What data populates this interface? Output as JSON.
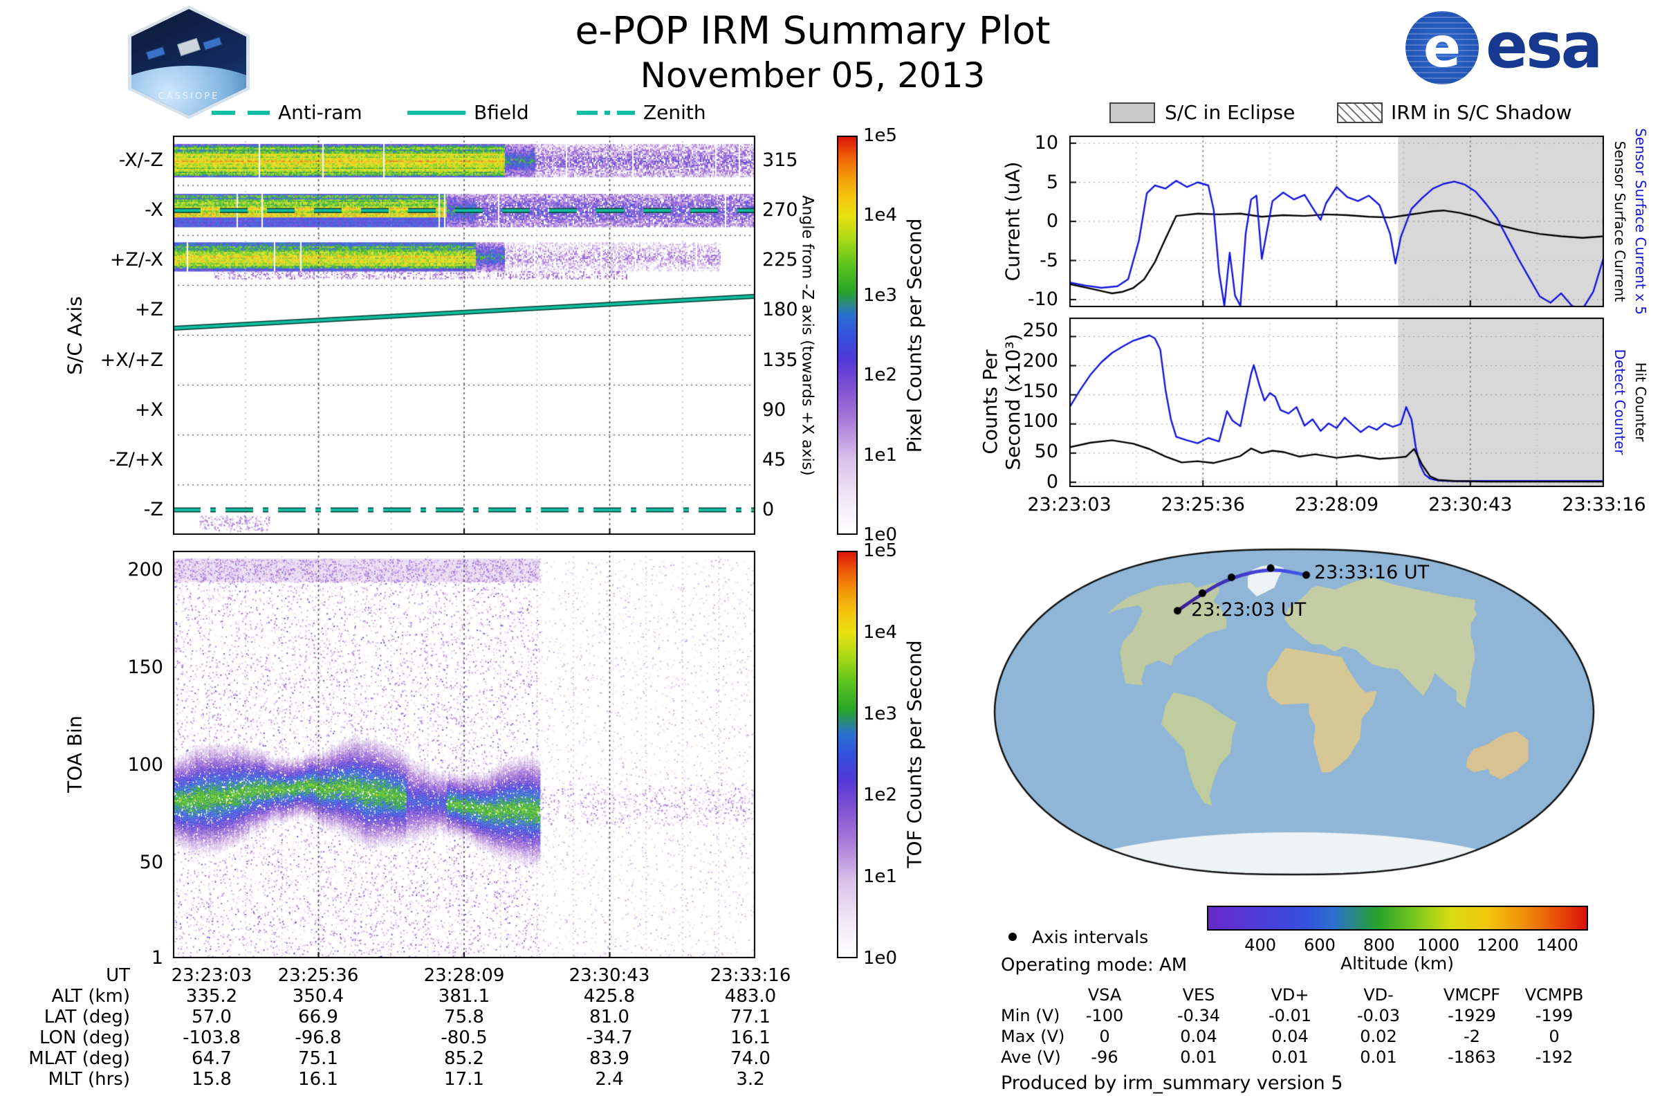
{
  "header": {
    "title": "e-POP IRM Summary Plot",
    "subtitle": "November 05, 2013",
    "esa_label": "esa",
    "mission_label": "CASSIOPE"
  },
  "attitude_legend": {
    "items": [
      {
        "label": "Anti-ram",
        "style": "dashed"
      },
      {
        "label": "Bfield",
        "style": "solid"
      },
      {
        "label": "Zenith",
        "style": "dashdot"
      }
    ],
    "line_color": "#10bfa2"
  },
  "eclipse_legend": {
    "eclipse_label": "S/C in Eclipse",
    "shadow_label": "IRM in S/C Shadow"
  },
  "ephemeris_table": {
    "row_labels": [
      "UT",
      "ALT (km)",
      "LAT (deg)",
      "LON (deg)",
      "MLAT (deg)",
      "MLT (hrs)"
    ],
    "rows": [
      [
        "23:23:03",
        "23:25:36",
        "23:28:09",
        "23:30:43",
        "23:33:16"
      ],
      [
        "335.2",
        "350.4",
        "381.1",
        "425.8",
        "483.0"
      ],
      [
        "57.0",
        "66.9",
        "75.8",
        "81.0",
        "77.1"
      ],
      [
        "-103.8",
        "-96.8",
        "-80.5",
        "-34.7",
        "16.1"
      ],
      [
        "64.7",
        "75.1",
        "85.2",
        "83.9",
        "74.0"
      ],
      [
        "15.8",
        "16.1",
        "17.1",
        "2.4",
        "3.2"
      ]
    ]
  },
  "voltage_table": {
    "columns": [
      "VSA",
      "VES",
      "VD+",
      "VD-",
      "VMCPF",
      "VCMPB"
    ],
    "row_labels": [
      "Min (V)",
      "Max (V)",
      "Ave (V)"
    ],
    "rows": [
      [
        "-100",
        "-0.34",
        "-0.01",
        "-0.03",
        "-1929",
        "-199"
      ],
      [
        "0",
        "0.04",
        "0.04",
        "0.02",
        "-2",
        "0"
      ],
      [
        "-96",
        "0.01",
        "0.01",
        "0.01",
        "-1863",
        "-192"
      ]
    ]
  },
  "footer": {
    "axis_intervals_label": "Axis intervals",
    "operating_mode": "Operating mode: AM",
    "produced_by": "Produced by irm_summary version 5"
  },
  "chart_data": [
    {
      "id": "sc_axis_spectrogram",
      "type": "heatmap",
      "ylabel": "S/C Axis",
      "yticks": [
        "-X/-Z",
        "-X",
        "+Z/-X",
        "+Z",
        "+X/+Z",
        "+X",
        "-Z/+X",
        "-Z"
      ],
      "y2label": "Angle from -Z axis (towards +X axis)",
      "y2ticks": [
        "315",
        "270",
        "225",
        "180",
        "135",
        "90",
        "45",
        "0"
      ],
      "x_start": "23:23:03",
      "x_end": "23:33:16",
      "signal_end_fraction": 0.62,
      "colorbar": {
        "label": "Pixel Counts per Second",
        "ticks": [
          "1e5",
          "1e4",
          "1e3",
          "1e2",
          "1e1",
          "1e0"
        ]
      },
      "overlays": [
        {
          "name": "Anti-ram",
          "style": "dashed",
          "band": "-X"
        },
        {
          "name": "Bfield",
          "style": "solid",
          "band": "+Z",
          "y_start_frac": 0.86,
          "y_end_frac": 0.22
        },
        {
          "name": "Zenith",
          "style": "dashdot",
          "band": "-Z"
        }
      ]
    },
    {
      "id": "tof_spectrogram",
      "type": "heatmap",
      "ylabel": "TOA Bin",
      "yticks": [
        "200",
        "150",
        "100",
        "50",
        "1"
      ],
      "bin_range": [
        1,
        210
      ],
      "main_band_center_bin": 82,
      "signal_end_fraction": 0.63,
      "colorbar": {
        "label": "TOF Counts per Second",
        "ticks": [
          "1e5",
          "1e4",
          "1e3",
          "1e2",
          "1e1",
          "1e0"
        ]
      }
    },
    {
      "id": "sensor_current",
      "type": "line",
      "ylabel": "Current (uA)",
      "ylim": [
        -10,
        10
      ],
      "yticks": [
        10,
        5,
        0,
        -5,
        -10
      ],
      "eclipse_start_fraction": 0.615,
      "right_labels": [
        {
          "text": "Sensor Surface Current",
          "color": "#000000"
        },
        {
          "text": "Sensor Surface Current x 5",
          "color": "#1414e0"
        }
      ],
      "series": [
        {
          "name": "Sensor Surface Current",
          "color": "#000000",
          "x": [
            0,
            0.02,
            0.04,
            0.06,
            0.08,
            0.1,
            0.12,
            0.14,
            0.16,
            0.18,
            0.2,
            0.24,
            0.28,
            0.32,
            0.36,
            0.4,
            0.44,
            0.48,
            0.52,
            0.56,
            0.6,
            0.63,
            0.66,
            0.68,
            0.7,
            0.73,
            0.76,
            0.8,
            0.84,
            0.88,
            0.92,
            0.96,
            1.0
          ],
          "y": [
            -8.0,
            -8.3,
            -8.6,
            -8.9,
            -9.2,
            -9.0,
            -8.5,
            -7.4,
            -5.2,
            -2.2,
            0.7,
            1.0,
            0.9,
            1.0,
            0.6,
            0.8,
            0.7,
            0.9,
            0.8,
            0.6,
            0.5,
            0.8,
            1.1,
            1.3,
            1.4,
            1.1,
            0.6,
            -0.4,
            -1.1,
            -1.6,
            -1.9,
            -2.1,
            -1.9
          ]
        },
        {
          "name": "Sensor Surface Current x 5",
          "color": "#1414e0",
          "x": [
            0,
            0.03,
            0.06,
            0.09,
            0.11,
            0.13,
            0.145,
            0.16,
            0.18,
            0.2,
            0.22,
            0.24,
            0.26,
            0.27,
            0.28,
            0.29,
            0.3,
            0.31,
            0.32,
            0.33,
            0.34,
            0.35,
            0.36,
            0.38,
            0.4,
            0.42,
            0.44,
            0.46,
            0.47,
            0.48,
            0.5,
            0.52,
            0.54,
            0.56,
            0.58,
            0.6,
            0.61,
            0.62,
            0.64,
            0.66,
            0.68,
            0.7,
            0.72,
            0.74,
            0.76,
            0.78,
            0.8,
            0.82,
            0.84,
            0.86,
            0.88,
            0.9,
            0.92,
            0.94,
            0.96,
            0.98,
            1.0
          ],
          "y": [
            -7.8,
            -8.2,
            -8.5,
            -8.3,
            -7.4,
            -2.5,
            3.6,
            4.6,
            4.2,
            5.2,
            4.4,
            5.0,
            4.6,
            1.5,
            -6.5,
            -10.8,
            -4.0,
            -9.5,
            -10.8,
            -1.5,
            2.8,
            3.3,
            -4.8,
            2.6,
            3.7,
            2.8,
            3.4,
            1.2,
            0.2,
            2.3,
            4.4,
            3.1,
            2.6,
            3.3,
            2.1,
            -1.6,
            -5.4,
            -2.0,
            1.6,
            3.0,
            4.2,
            4.8,
            5.1,
            4.7,
            3.8,
            2.2,
            0.4,
            -2.2,
            -4.8,
            -7.2,
            -9.6,
            -10.4,
            -9.2,
            -10.8,
            -11.2,
            -9.0,
            -4.5
          ]
        }
      ]
    },
    {
      "id": "counters",
      "type": "line",
      "ylabel_lines": [
        "Counts Per",
        "Second (x10³)"
      ],
      "ylim": [
        0,
        260
      ],
      "yticks": [
        250,
        200,
        150,
        100,
        50,
        0
      ],
      "eclipse_start_fraction": 0.615,
      "xticklabels": [
        "23:23:03",
        "23:25:36",
        "23:28:09",
        "23:30:43",
        "23:33:16"
      ],
      "right_labels": [
        {
          "text": "Detect Counter",
          "color": "#1414e0"
        },
        {
          "text": "Hit Counter",
          "color": "#000000"
        }
      ],
      "series": [
        {
          "name": "Detect Counter",
          "color": "#1414e0",
          "x": [
            0,
            0.02,
            0.04,
            0.06,
            0.08,
            0.1,
            0.12,
            0.14,
            0.15,
            0.16,
            0.17,
            0.18,
            0.19,
            0.2,
            0.22,
            0.24,
            0.26,
            0.28,
            0.295,
            0.305,
            0.32,
            0.33,
            0.34,
            0.345,
            0.355,
            0.365,
            0.375,
            0.385,
            0.395,
            0.41,
            0.425,
            0.44,
            0.455,
            0.47,
            0.485,
            0.5,
            0.515,
            0.53,
            0.545,
            0.56,
            0.575,
            0.59,
            0.605,
            0.62,
            0.63,
            0.64,
            0.648,
            0.656,
            0.665,
            0.675,
            0.69,
            0.71,
            0.74,
            0.78,
            0.84,
            0.92,
            1.0
          ],
          "y": [
            128,
            158,
            185,
            206,
            222,
            233,
            243,
            249,
            252,
            247,
            228,
            158,
            108,
            78,
            72,
            67,
            76,
            70,
            122,
            106,
            96,
            142,
            186,
            201,
            168,
            140,
            153,
            147,
            124,
            118,
            129,
            97,
            108,
            88,
            101,
            93,
            111,
            98,
            86,
            96,
            90,
            101,
            95,
            100,
            129,
            108,
            60,
            30,
            13,
            6,
            3,
            2,
            2,
            2,
            2,
            2,
            2
          ]
        },
        {
          "name": "Hit Counter",
          "color": "#000000",
          "x": [
            0,
            0.04,
            0.08,
            0.12,
            0.15,
            0.18,
            0.21,
            0.24,
            0.27,
            0.3,
            0.32,
            0.34,
            0.36,
            0.38,
            0.4,
            0.43,
            0.46,
            0.5,
            0.54,
            0.58,
            0.61,
            0.63,
            0.645,
            0.66,
            0.675,
            0.69,
            0.72,
            0.78,
            0.86,
            1.0
          ],
          "y": [
            60,
            68,
            72,
            66,
            57,
            44,
            34,
            36,
            33,
            40,
            45,
            58,
            50,
            54,
            52,
            44,
            48,
            42,
            46,
            40,
            42,
            44,
            57,
            30,
            10,
            4,
            2,
            1,
            1,
            1
          ]
        }
      ]
    },
    {
      "id": "ground_track_map",
      "type": "map",
      "start_label": "23:23:03 UT",
      "end_label": "23:33:16 UT",
      "track_points": [
        {
          "ut": "23:23:03",
          "lat": 57.0,
          "lon": -103.8,
          "alt_km": 335.2
        },
        {
          "ut": "23:25:36",
          "lat": 66.9,
          "lon": -96.8,
          "alt_km": 350.4
        },
        {
          "ut": "23:28:09",
          "lat": 75.8,
          "lon": -80.5,
          "alt_km": 381.1
        },
        {
          "ut": "23:30:43",
          "lat": 81.0,
          "lon": -34.7,
          "alt_km": 425.8
        },
        {
          "ut": "23:33:16",
          "lat": 77.1,
          "lon": 16.1,
          "alt_km": 483.0
        }
      ],
      "colorbar": {
        "label": "Altitude (km)",
        "ticks": [
          "400",
          "600",
          "800",
          "1000",
          "1200",
          "1400"
        ]
      }
    }
  ]
}
